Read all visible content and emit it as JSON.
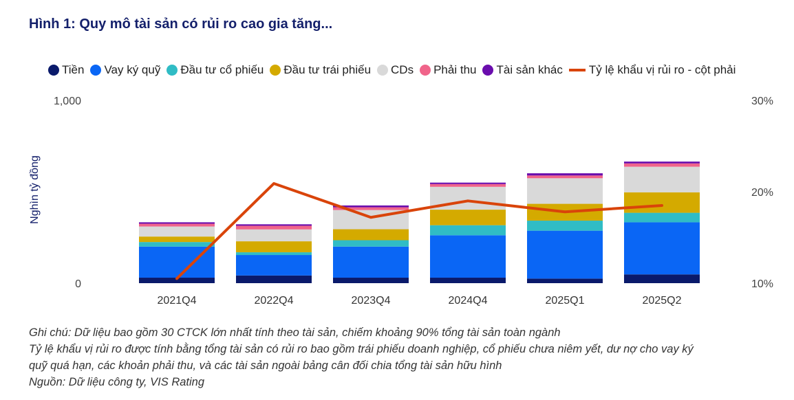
{
  "title": "Hình 1: Quy mô tài sản có rủi ro cao gia tăng...",
  "chart_data": {
    "type": "bar",
    "stacked": true,
    "categories": [
      "2021Q4",
      "2022Q4",
      "2023Q4",
      "2024Q4",
      "2025Q1",
      "2025Q2"
    ],
    "ylabel": "Nghìn tỷ đồng",
    "ylim": [
      0,
      1000
    ],
    "yticks": [
      "0",
      "1,000"
    ],
    "y2lim": [
      0.1,
      0.3
    ],
    "y2ticks": [
      "10%",
      "20%",
      "30%"
    ],
    "grid": false,
    "legend_position": "top",
    "series": [
      {
        "name": "Tiền",
        "color": "#0a1a6b",
        "values": [
          30,
          42,
          30,
          30,
          25,
          48
        ]
      },
      {
        "name": "Vay ký quỹ",
        "color": "#0a66f5",
        "values": [
          170,
          112,
          170,
          232,
          262,
          285
        ]
      },
      {
        "name": "Đầu tư cổ phiếu",
        "color": "#30bcc5",
        "values": [
          25,
          15,
          35,
          55,
          55,
          52
        ]
      },
      {
        "name": "Đầu tư trái phiếu",
        "color": "#d4aa00",
        "values": [
          30,
          60,
          60,
          85,
          92,
          112
        ]
      },
      {
        "name": "CDs",
        "color": "#d9d9d9",
        "values": [
          55,
          65,
          105,
          125,
          140,
          140
        ]
      },
      {
        "name": "Phải thu",
        "color": "#f0648a",
        "values": [
          15,
          20,
          15,
          15,
          15,
          18
        ]
      },
      {
        "name": "Tài sản khác",
        "color": "#6a0dad",
        "values": [
          8,
          8,
          10,
          8,
          12,
          10
        ]
      },
      {
        "name": "Tỷ lệ khẩu vị rủi ro - cột phải",
        "color": "#d9440a",
        "type": "line",
        "axis": "right",
        "values": [
          0.105,
          0.209,
          0.172,
          0.19,
          0.178,
          0.185
        ]
      }
    ]
  },
  "notes": [
    "Ghi chú:  Dữ liệu bao gồm 30 CTCK lớn nhất tính theo tài sản, chiếm khoảng 90% tổng tài sản toàn ngành",
    "Tỷ lệ khẩu vị rủi ro được tính bằng tổng tài sản có rủi ro bao gồm trái phiếu doanh nghiệp, cổ phiếu chưa niêm yết, dư nợ cho vay ký",
    "quỹ quá hạn, các khoản phải thu, và các tài sản ngoài bảng cân đối chia tổng tài sản hữu hình",
    "Nguồn: Dữ liệu công ty, VIS Rating"
  ]
}
